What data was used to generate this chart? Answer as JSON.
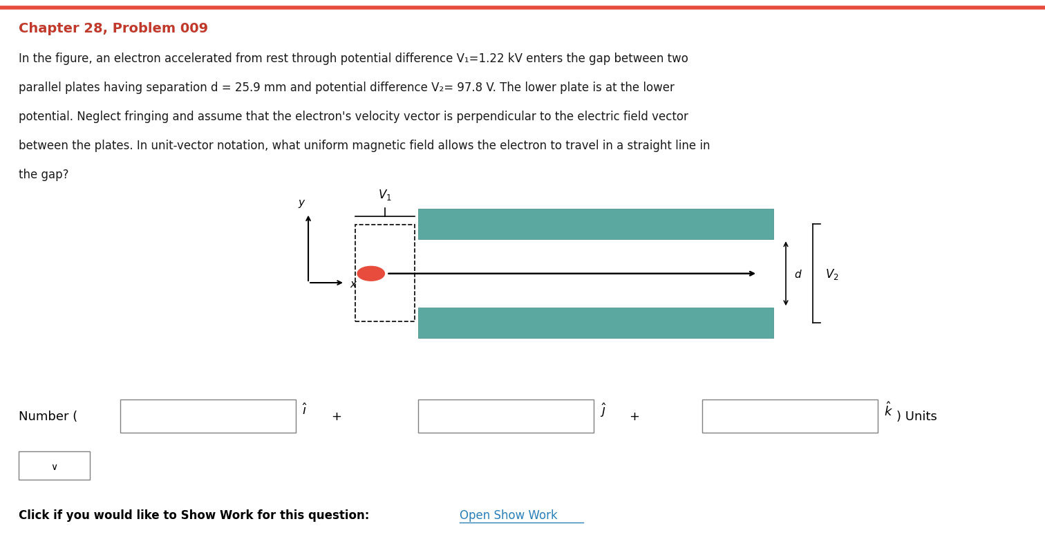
{
  "title": "Chapter 28, Problem 009",
  "title_color": "#c0392b",
  "bg_color": "#ffffff",
  "body_lines": [
    "In the figure, an electron accelerated from rest through potential difference V₁=1.22 kV enters the gap between two",
    "parallel plates having separation d = 25.9 mm and potential difference V₂= 97.8 V. The lower plate is at the lower",
    "potential. Neglect fringing and assume that the electron's velocity vector is perpendicular to the electric field vector",
    "between the plates. In unit-vector notation, what uniform magnetic field allows the electron to travel in a straight line in",
    "the gap?"
  ],
  "plate_color": "#5ba8a0",
  "plate_edge_color": "#3a8a82",
  "electron_color": "#e74c3c",
  "input_box_color": "#ffffff",
  "input_box_border": "#808080",
  "footer_text": "Click if you would like to Show Work for this question:",
  "footer_link": "Open Show Work",
  "footer_link_color": "#2980b9",
  "top_border_color": "#e74c3c"
}
